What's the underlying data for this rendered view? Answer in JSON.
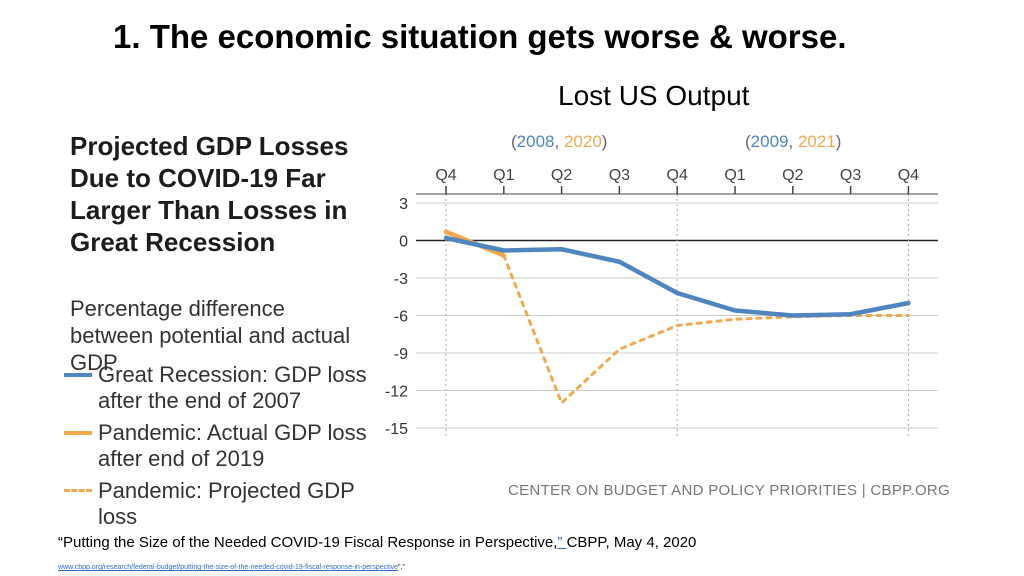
{
  "slide_title": "1. The economic situation gets worse & worse.",
  "subtitle": "Lost US Output",
  "chart_title": "Projected GDP Losses Due to COVID-19 Far Larger Than Losses in Great Recession",
  "chart_subtitle": "Percentage difference between potential and actual GDP",
  "year_headers": {
    "left": {
      "open": "(",
      "a": "2008",
      "sep": ", ",
      "b": "2020",
      "close": ")"
    },
    "right": {
      "open": "(",
      "a": "2009",
      "sep": ", ",
      "b": "2021",
      "close": ")"
    }
  },
  "legend": [
    {
      "label": "Great Recession: GDP loss after the end of 2007",
      "style": "solid-blue"
    },
    {
      "label": "Pandemic: Actual GDP loss after end of 2019",
      "style": "solid-orange"
    },
    {
      "label": "Pandemic: Projected GDP loss",
      "style": "dotted-orange"
    }
  ],
  "credit": "CENTER ON BUDGET AND POLICY PRIORITIES | CBPP.ORG",
  "citation": {
    "prefix": "“Putting the Size of the Needed COVID-19 Fiscal Response in Perspective,",
    "link": "” ",
    "suffix": "CBPP, May 4, 2020"
  },
  "url": {
    "link": "www.cbpp.org/research/federal-budget/putting-the-size-of-the-needed-covid-19-fiscal-response-in-perspective",
    "suffix": "”,”"
  },
  "colors": {
    "blue": "#4f86bf",
    "orange": "#f1a950",
    "grid": "#cccccc",
    "zero": "#222222",
    "tick": "#444444"
  },
  "chart_data": {
    "type": "line",
    "categories": [
      "Q4",
      "Q1",
      "Q2",
      "Q3",
      "Q4",
      "Q1",
      "Q2",
      "Q3",
      "Q4"
    ],
    "y_ticks": [
      3,
      0,
      -3,
      -6,
      -9,
      -12,
      -15
    ],
    "ylim": [
      -15,
      3
    ],
    "series": [
      {
        "name": "Great Recession: GDP loss after the end of 2007",
        "style": "solid",
        "color": "#4f86bf",
        "values": [
          0.2,
          -0.8,
          -0.7,
          -1.7,
          -4.2,
          -5.6,
          -6.0,
          -5.9,
          -5.0
        ]
      },
      {
        "name": "Pandemic: Actual GDP loss after end of 2019",
        "style": "solid",
        "color": "#f1a950",
        "values": [
          0.7,
          -1.2,
          null,
          null,
          null,
          null,
          null,
          null,
          null
        ]
      },
      {
        "name": "Pandemic: Projected GDP loss",
        "style": "dotted",
        "color": "#f1a950",
        "values": [
          null,
          -1.2,
          -13.0,
          -8.7,
          -6.8,
          -6.3,
          -6.1,
          -6.0,
          -6.0
        ]
      }
    ]
  }
}
